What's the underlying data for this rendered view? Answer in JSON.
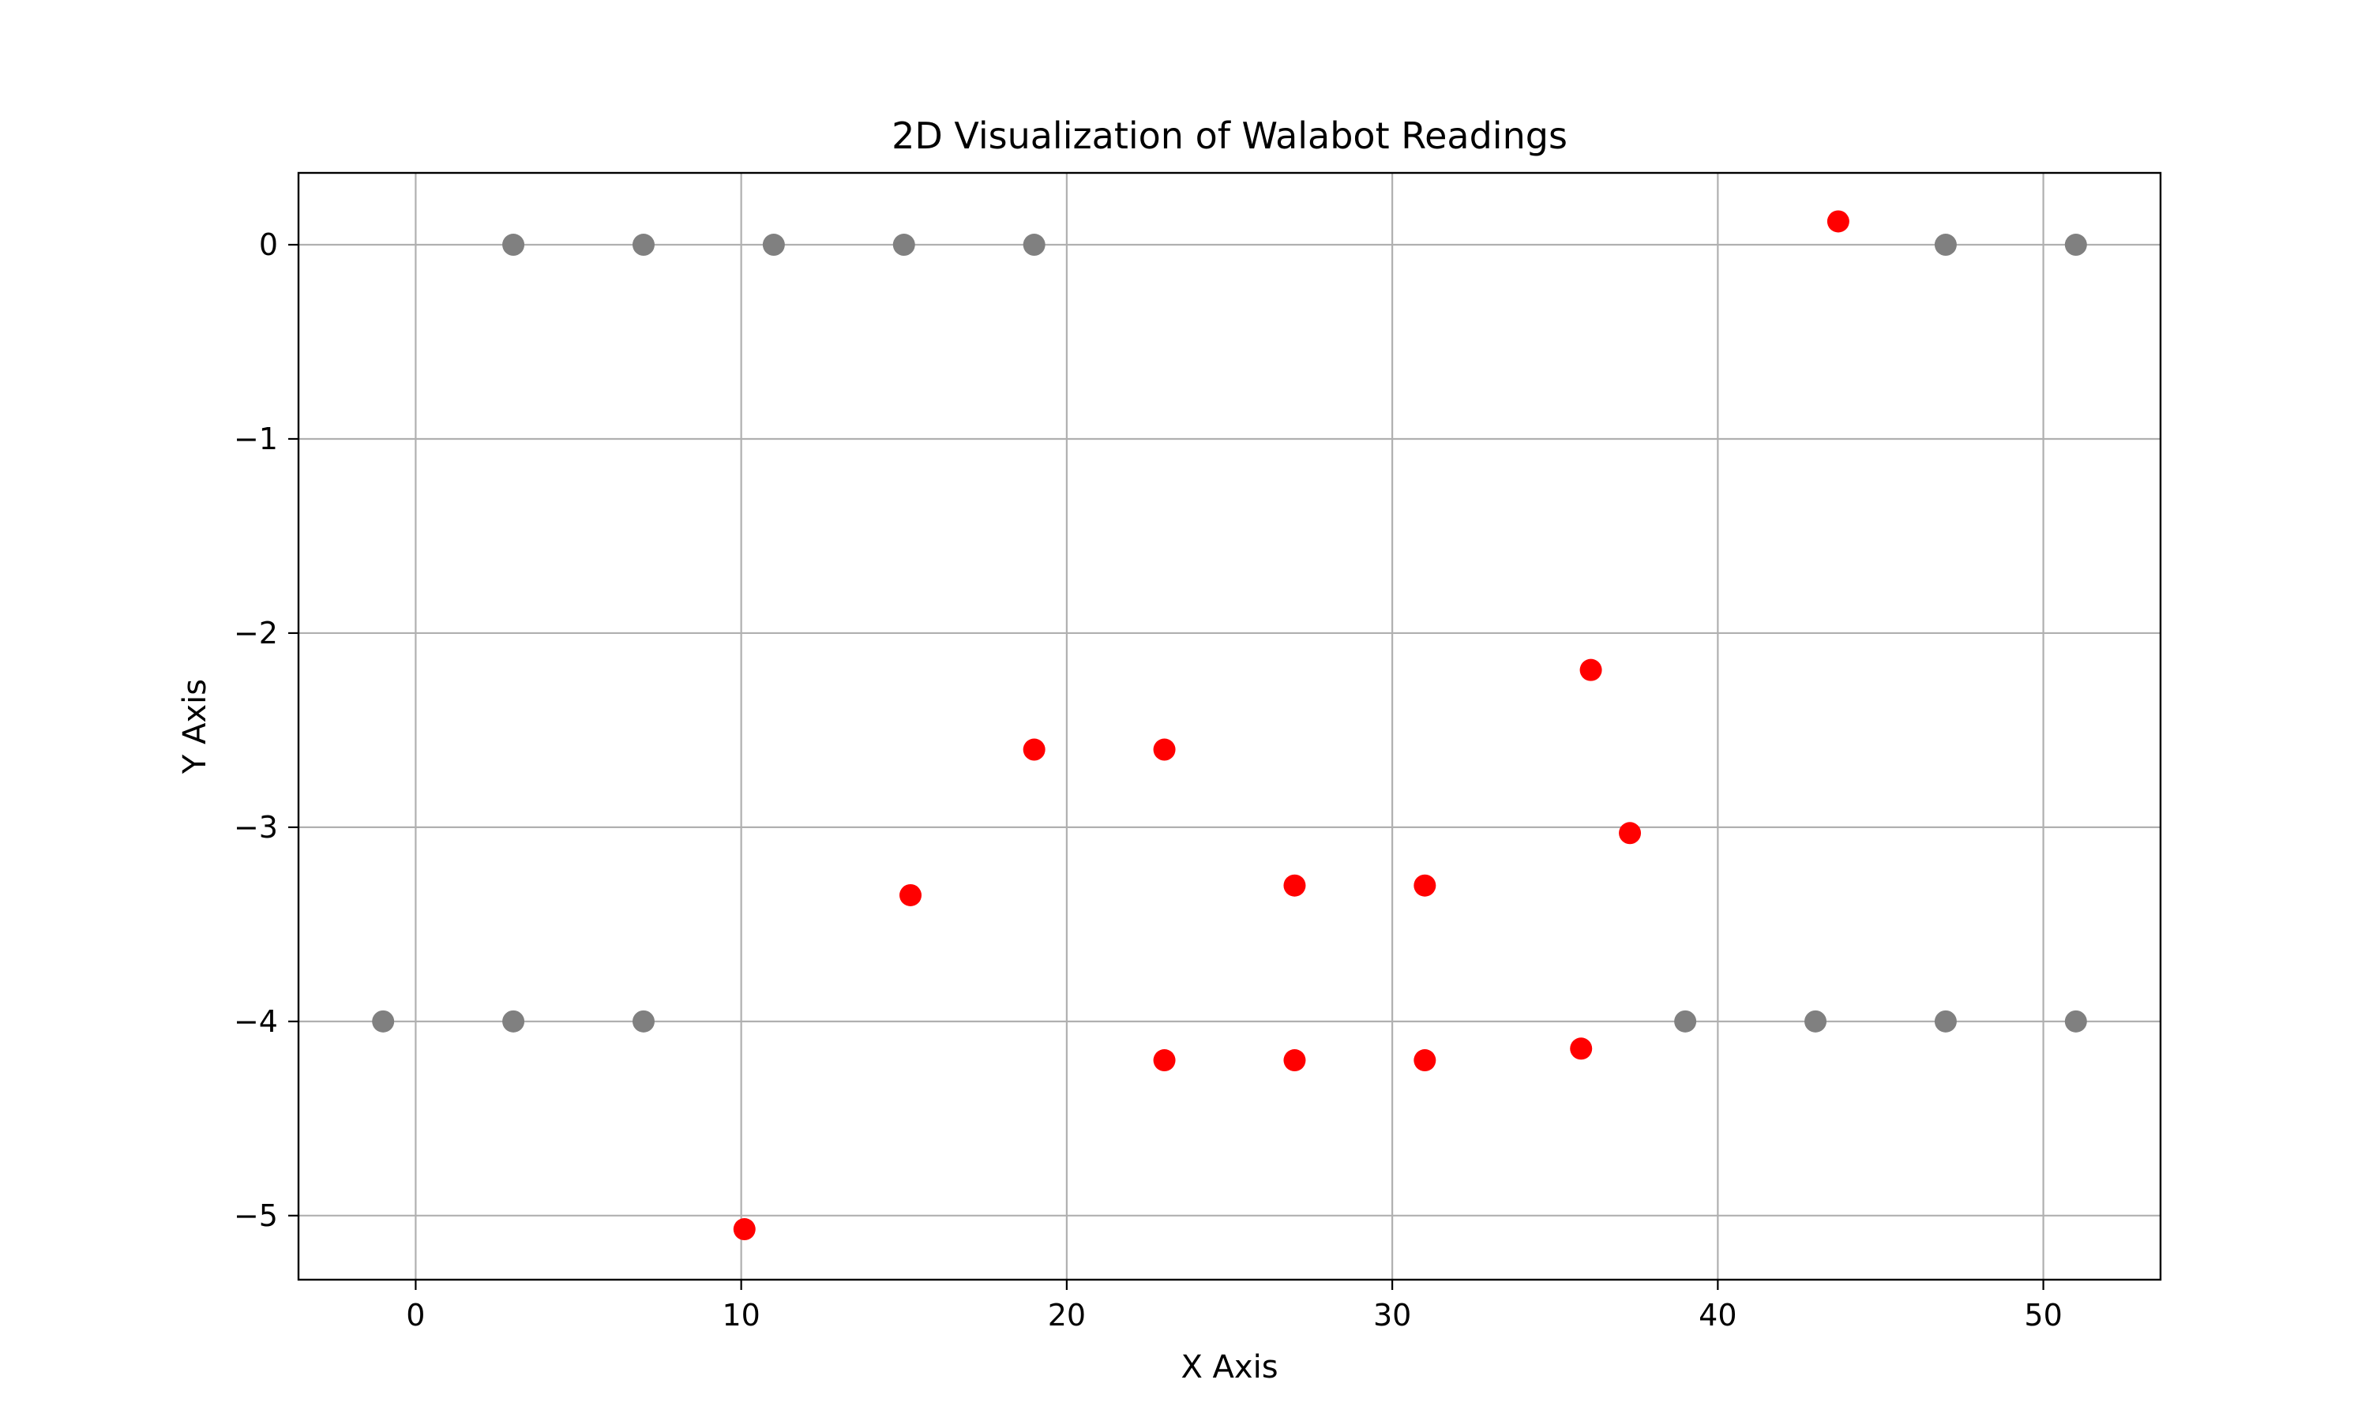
{
  "chart_data": {
    "type": "scatter",
    "title": "2D Visualization of Walabot Readings",
    "xlabel": "X Axis",
    "ylabel": "Y Axis",
    "xlim": [
      -3.6,
      53.6
    ],
    "ylim": [
      -5.33,
      0.37
    ],
    "xticks": [
      0,
      10,
      20,
      30,
      40,
      50
    ],
    "xtick_labels": [
      "0",
      "10",
      "20",
      "30",
      "40",
      "50"
    ],
    "yticks": [
      0,
      -1,
      -2,
      -3,
      -4,
      -5
    ],
    "ytick_labels": [
      "0",
      "−1",
      "−2",
      "−3",
      "−4",
      "−5"
    ],
    "grid": true,
    "legend": "none",
    "series": [
      {
        "color": "#808080",
        "points": [
          {
            "x": 3,
            "y": 0
          },
          {
            "x": 7,
            "y": 0
          },
          {
            "x": 11,
            "y": 0
          },
          {
            "x": 15,
            "y": 0
          },
          {
            "x": 19,
            "y": 0
          },
          {
            "x": 47,
            "y": 0
          },
          {
            "x": 51,
            "y": 0
          },
          {
            "x": -1,
            "y": -4
          },
          {
            "x": 3,
            "y": -4
          },
          {
            "x": 7,
            "y": -4
          },
          {
            "x": 39,
            "y": -4
          },
          {
            "x": 43,
            "y": -4
          },
          {
            "x": 47,
            "y": -4
          },
          {
            "x": 51,
            "y": -4
          }
        ]
      },
      {
        "color": "#ff0000",
        "points": [
          {
            "x": 43.7,
            "y": 0.12
          },
          {
            "x": 36.1,
            "y": -2.19
          },
          {
            "x": 19.0,
            "y": -2.6
          },
          {
            "x": 23.0,
            "y": -2.6
          },
          {
            "x": 37.3,
            "y": -3.03
          },
          {
            "x": 27.0,
            "y": -3.3
          },
          {
            "x": 31.0,
            "y": -3.3
          },
          {
            "x": 15.2,
            "y": -3.35
          },
          {
            "x": 35.8,
            "y": -4.14
          },
          {
            "x": 23.0,
            "y": -4.2
          },
          {
            "x": 27.0,
            "y": -4.2
          },
          {
            "x": 31.0,
            "y": -4.2
          },
          {
            "x": 10.1,
            "y": -5.07
          }
        ]
      }
    ]
  }
}
